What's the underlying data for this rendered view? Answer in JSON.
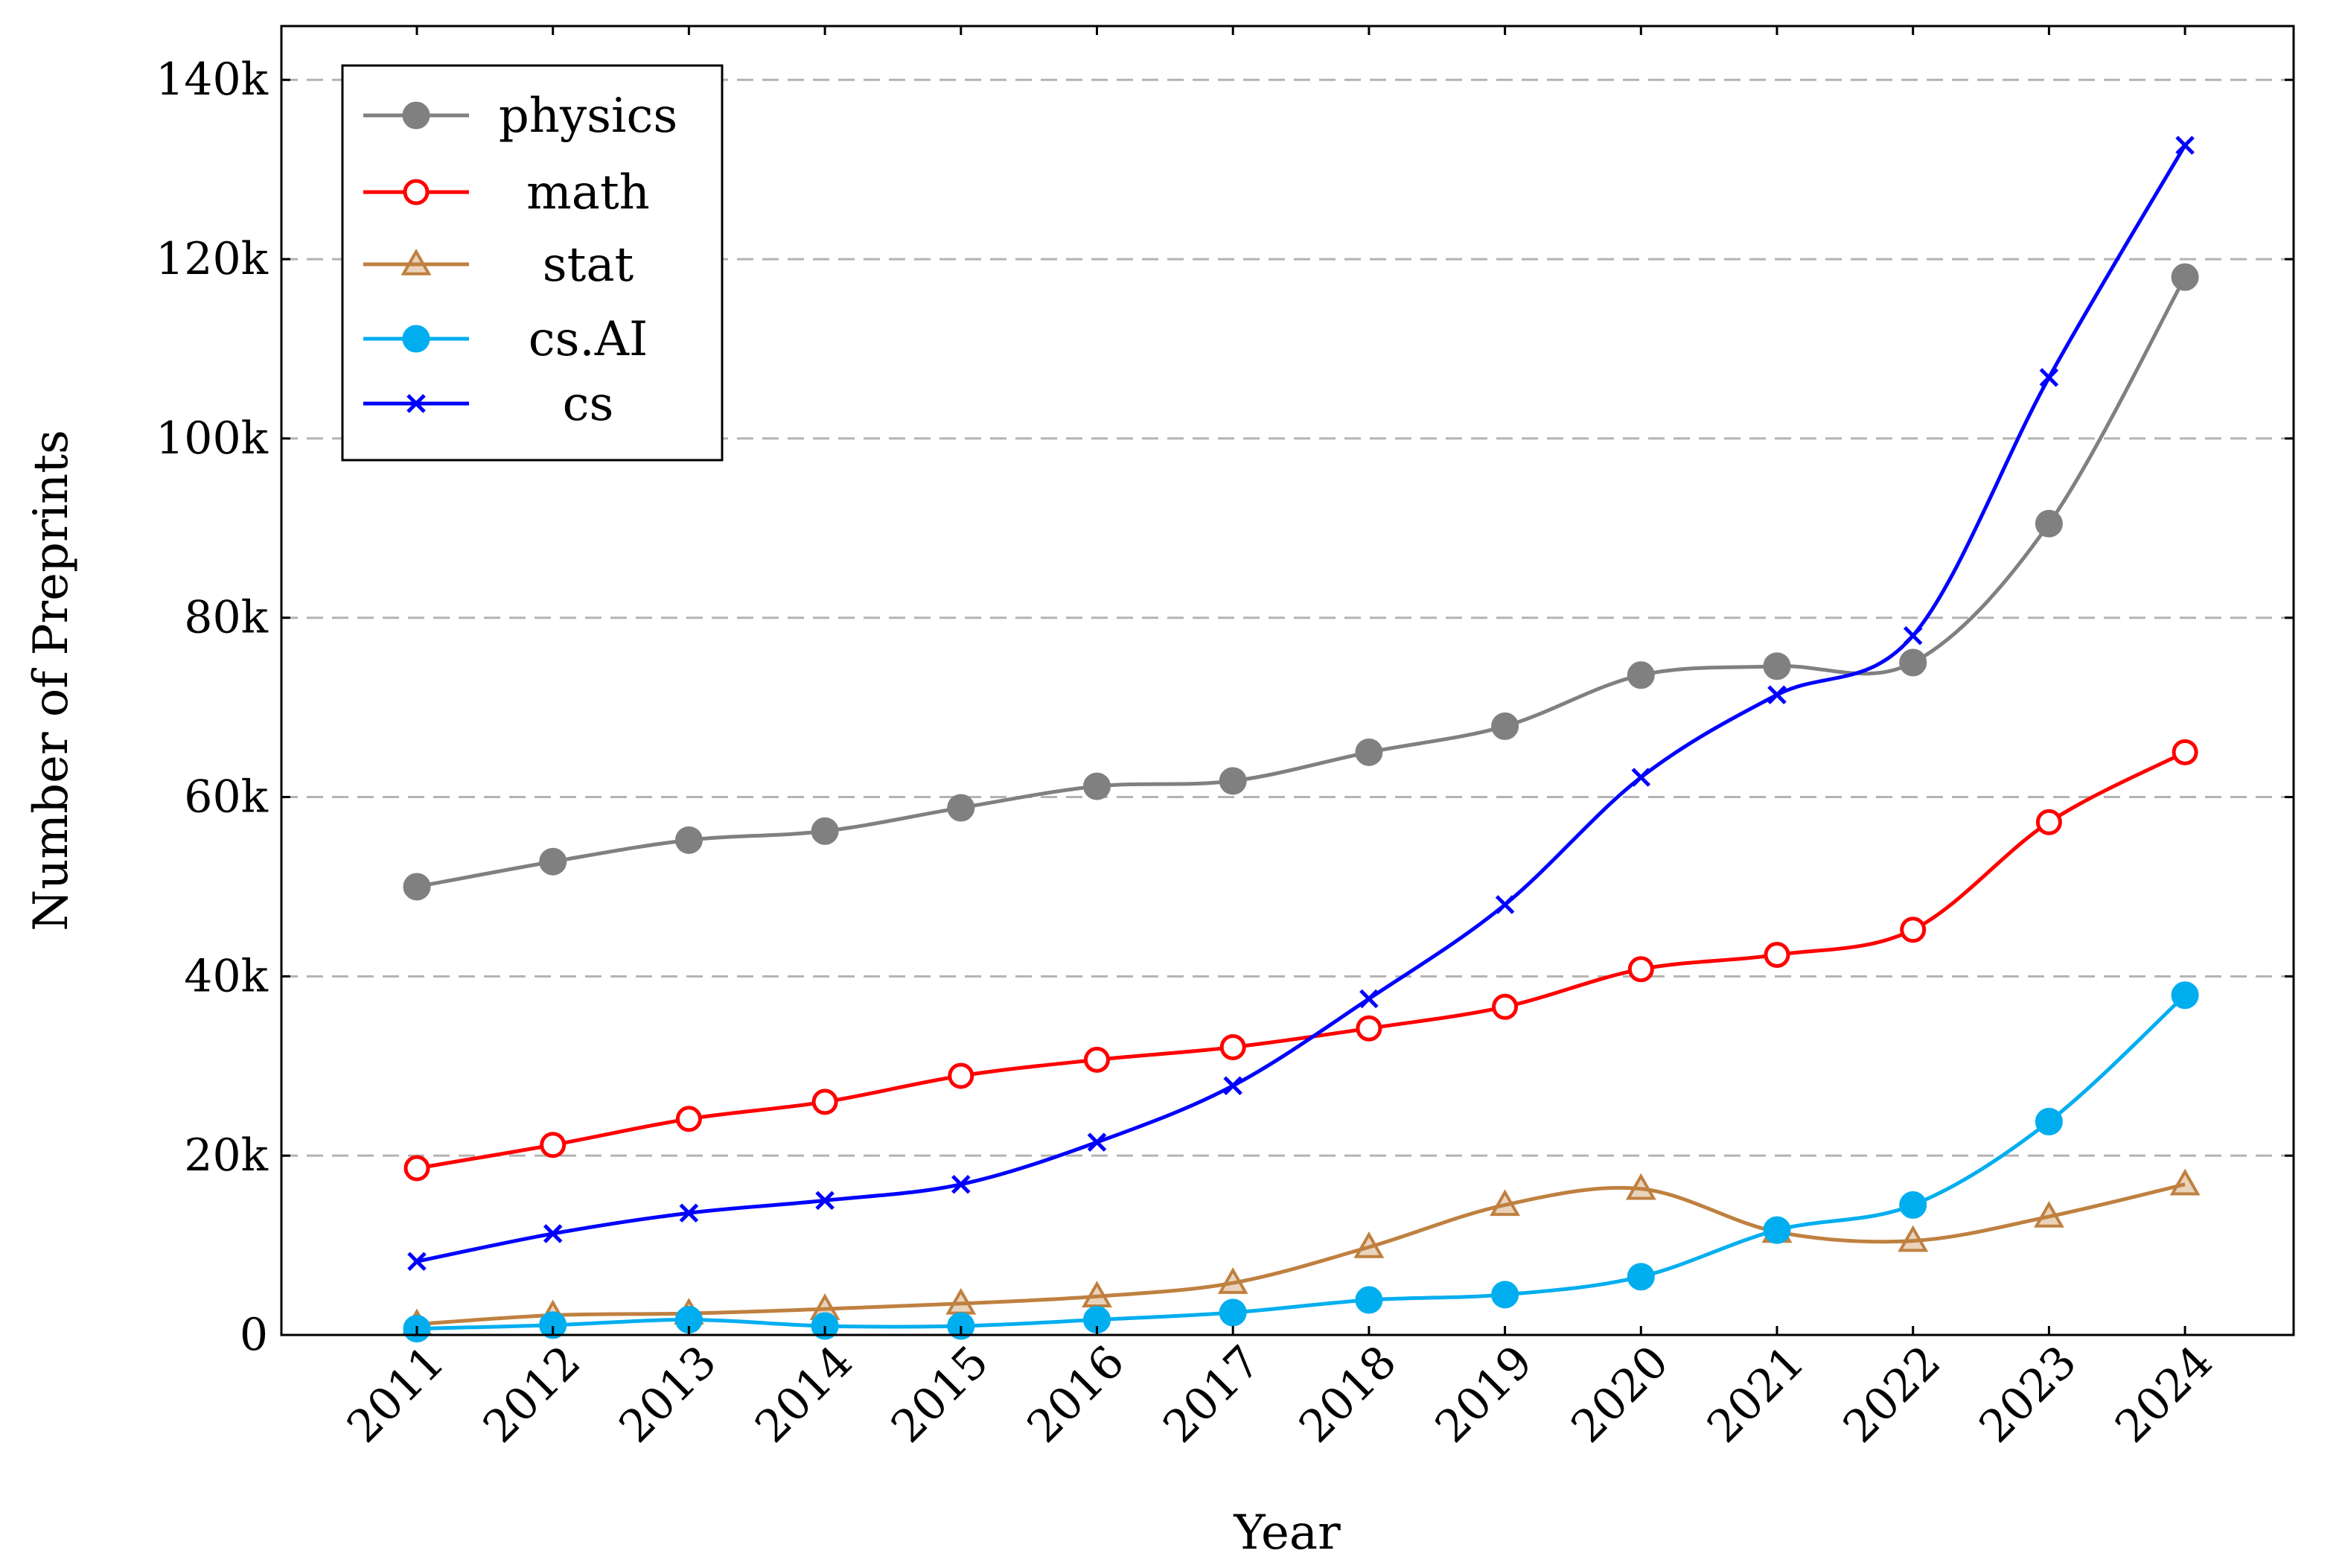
{
  "chart_data": {
    "type": "line",
    "title": "",
    "xlabel": "Year",
    "ylabel": "Number of Preprints",
    "ylim": [
      0,
      146000
    ],
    "yticks": [
      0,
      20000,
      40000,
      60000,
      80000,
      100000,
      120000,
      140000
    ],
    "ytick_labels": [
      "0",
      "20k",
      "40k",
      "60k",
      "80k",
      "100k",
      "120k",
      "140k"
    ],
    "categories": [
      "2011",
      "2012",
      "2013",
      "2014",
      "2015",
      "2016",
      "2017",
      "2018",
      "2019",
      "2020",
      "2021",
      "2022",
      "2023",
      "2024"
    ],
    "grid": "horizontal-dashed",
    "legend_position": "top-left",
    "series": [
      {
        "name": "physics",
        "color": "#808080",
        "marker": "filled-circle",
        "values": [
          50000,
          52800,
          55200,
          56200,
          58800,
          61200,
          61800,
          65000,
          67900,
          73600,
          74600,
          75000,
          90500,
          118000
        ]
      },
      {
        "name": "math",
        "color": "#ff0000",
        "marker": "open-circle",
        "values": [
          18600,
          21200,
          24100,
          26000,
          28900,
          30700,
          32100,
          34200,
          36600,
          40800,
          42400,
          45200,
          57200,
          65000
        ]
      },
      {
        "name": "stat",
        "color": "#bf8040",
        "marker": "open-triangle",
        "values": [
          1200,
          2200,
          2400,
          2900,
          3500,
          4300,
          5800,
          9800,
          14500,
          16300,
          11500,
          10500,
          13200,
          16800
        ]
      },
      {
        "name": "cs.AI",
        "color": "#00aeef",
        "marker": "filled-circle",
        "values": [
          700,
          1100,
          1700,
          1000,
          1000,
          1700,
          2500,
          3900,
          4500,
          6500,
          11700,
          14500,
          23800,
          37900
        ]
      },
      {
        "name": "cs",
        "color": "#0000ff",
        "marker": "cross",
        "values": [
          8200,
          11300,
          13600,
          15000,
          16800,
          21500,
          27800,
          37500,
          48000,
          62200,
          71400,
          78000,
          106800,
          132700
        ]
      }
    ]
  }
}
